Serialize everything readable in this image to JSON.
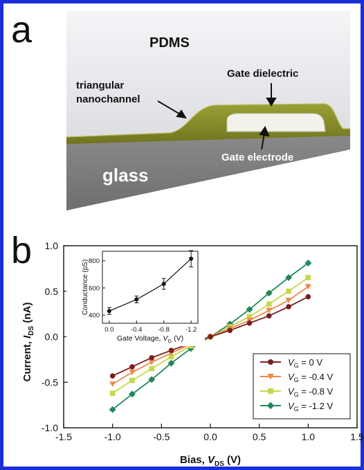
{
  "panel_a": {
    "letter": "a",
    "labels": {
      "pdms": "PDMS",
      "triangular": "triangular",
      "nanochannel": "nanochannel",
      "gate_dielectric": "Gate dielectric",
      "gate_electrode": "Gate electrode",
      "glass": "glass"
    },
    "colors": {
      "pdms": "#e7e8ea",
      "dielectric": "#8a8f2a",
      "glass": "#7c7c7c",
      "electrode": "#f2f2ea"
    }
  },
  "panel_b": {
    "letter": "b",
    "ylabel_text": "Current, ",
    "ylabel_var": "I",
    "ylabel_sub": "DS",
    "ylabel_unit": " (nA)",
    "xlabel_text": "Bias, ",
    "xlabel_var": "V",
    "xlabel_sub": "DS",
    "xlabel_unit": " (V)",
    "legend_var": "V",
    "legend_sub": "G"
  },
  "chart_data": [
    {
      "type": "line",
      "x": [
        -1.0,
        -0.8,
        -0.6,
        -0.4,
        -0.2,
        0.0,
        0.2,
        0.4,
        0.6,
        0.8,
        1.0
      ],
      "xlim": [
        -1.5,
        1.5
      ],
      "ylim": [
        -1.0,
        1.0
      ],
      "xticks": [
        "-1.5",
        "-1.0",
        "-0.5",
        "0.0",
        "0.5",
        "1.0",
        "1.5"
      ],
      "yticks": [
        "-1.0",
        "-0.5",
        "0.0",
        "0.5",
        "1.0"
      ],
      "legend_position": "lower-right",
      "series": [
        {
          "name": "= 0 V",
          "color": "#7a1e1e",
          "marker": "circle",
          "values": [
            -0.43,
            -0.33,
            -0.23,
            -0.15,
            -0.07,
            0.0,
            0.07,
            0.15,
            0.23,
            0.33,
            0.44
          ]
        },
        {
          "name": "= -0.4 V",
          "color": "#f0884a",
          "marker": "triangle-down",
          "values": [
            -0.52,
            -0.39,
            -0.28,
            -0.18,
            -0.08,
            0.0,
            0.09,
            0.18,
            0.29,
            0.4,
            0.55
          ]
        },
        {
          "name": "= -0.8 V",
          "color": "#c6d84c",
          "marker": "square",
          "values": [
            -0.62,
            -0.48,
            -0.35,
            -0.22,
            -0.1,
            0.0,
            0.11,
            0.22,
            0.36,
            0.5,
            0.65
          ]
        },
        {
          "name": "= -1.2 V",
          "color": "#22875a",
          "marker": "diamond",
          "values": [
            -0.8,
            -0.63,
            -0.47,
            -0.29,
            -0.13,
            0.0,
            0.14,
            0.3,
            0.48,
            0.65,
            0.81
          ]
        }
      ]
    },
    {
      "type": "line",
      "inset": true,
      "xlabel_text": "Gate Voltage, ",
      "xlabel_var": "V",
      "xlabel_sub": "G",
      "xlabel_unit": " (V)",
      "ylabel": "Conductance (pS)",
      "x": [
        0.0,
        -0.4,
        -0.8,
        -1.2
      ],
      "values": [
        430,
        515,
        630,
        815
      ],
      "errors": [
        25,
        25,
        40,
        60
      ],
      "xticks": [
        "0.0",
        "-0.4",
        "-0.8",
        "-1.2"
      ],
      "yticks": [
        "400",
        "600",
        "800"
      ],
      "xlim": [
        0.1,
        -1.3
      ],
      "ylim": [
        340,
        870
      ],
      "color": "#111111"
    }
  ]
}
